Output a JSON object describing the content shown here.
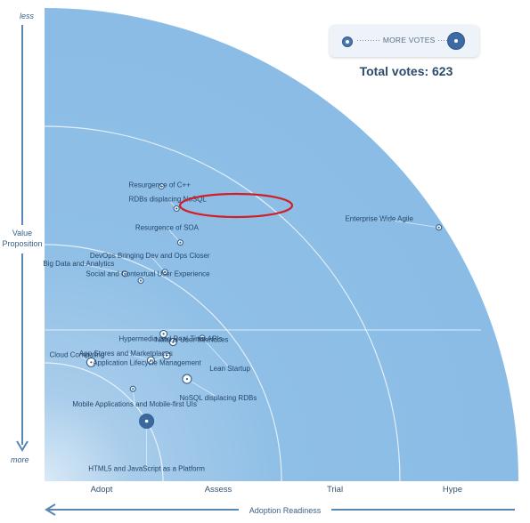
{
  "chart_data": {
    "type": "scatter",
    "x_axis": {
      "label": "Adoption Readiness",
      "rings": [
        "Adopt",
        "Assess",
        "Trial",
        "Hype"
      ]
    },
    "y_axis": {
      "label_lines": [
        "Value",
        "Proposition"
      ],
      "top_label": "less",
      "bottom_label": "more"
    },
    "legend": {
      "text": "MORE VOTES",
      "placement": "top-right"
    },
    "total_votes_text": "Total votes: 623",
    "highlight": "Resurgence of C++",
    "items": [
      {
        "label": "Resurgence of C++",
        "radius": 0.67,
        "angle": 68.4,
        "size": 2
      },
      {
        "label": "RDBs displacing NoSQL",
        "radius": 0.64,
        "angle": 64.2,
        "size": 2
      },
      {
        "label": "Resurgence of SOA",
        "radius": 0.58,
        "angle": 60.4,
        "size": 2
      },
      {
        "label": "DevOps Bringing Dev and Ops Closer",
        "radius": 0.51,
        "angle": 60.1,
        "size": 2
      },
      {
        "label": "Big Data and Analytics",
        "radius": 0.47,
        "angle": 68.8,
        "size": 2
      },
      {
        "label": "Social and Contextual User Experience",
        "radius": 0.47,
        "angle": 64.4,
        "size": 2
      },
      {
        "label": "App Stores and Marketplaces",
        "radius": 0.34,
        "angle": 48.7,
        "size": 3
      },
      {
        "label": "Cloud Computing",
        "radius": 0.27,
        "angle": 68.6,
        "size": 4
      },
      {
        "label": "Hypermedia and Real-Time APIs",
        "radius": 0.4,
        "angle": 51.1,
        "size": 3
      },
      {
        "label": "Application Lifecycle Management",
        "radius": 0.37,
        "angle": 45.9,
        "size": 3
      },
      {
        "label": "Natural User Interfaces",
        "radius": 0.4,
        "angle": 47.3,
        "size": 3
      },
      {
        "label": "NoSQL displacing RDBs",
        "radius": 0.37,
        "angle": 35.7,
        "size": 4
      },
      {
        "label": "Lean Startup",
        "radius": 0.45,
        "angle": 42.3,
        "size": 2
      },
      {
        "label": "Mobile Applications and Mobile-first UIs",
        "radius": 0.27,
        "angle": 46.3,
        "size": 2
      },
      {
        "label": "HTML5 and JavaScript as a Platform",
        "radius": 0.25,
        "angle": 30.5,
        "size": 12
      },
      {
        "label": "Enterprise Wide Agile",
        "radius": 0.99,
        "angle": 32.8,
        "size": 1
      }
    ]
  }
}
